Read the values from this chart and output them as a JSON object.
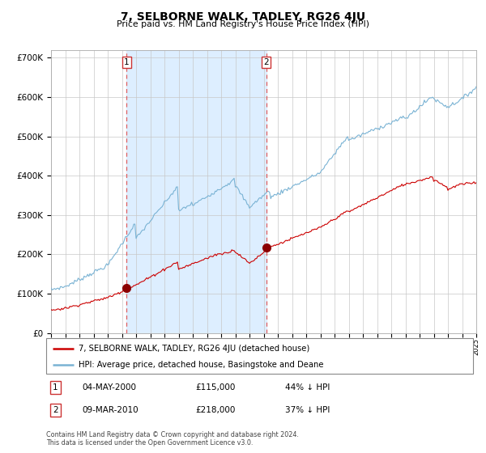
{
  "title": "7, SELBORNE WALK, TADLEY, RG26 4JU",
  "subtitle": "Price paid vs. HM Land Registry's House Price Index (HPI)",
  "legend_line1": "7, SELBORNE WALK, TADLEY, RG26 4JU (detached house)",
  "legend_line2": "HPI: Average price, detached house, Basingstoke and Deane",
  "annotation1_label": "1",
  "annotation1_date": "04-MAY-2000",
  "annotation1_price": "£115,000",
  "annotation1_hpi": "44% ↓ HPI",
  "annotation2_label": "2",
  "annotation2_date": "09-MAR-2010",
  "annotation2_price": "£218,000",
  "annotation2_hpi": "37% ↓ HPI",
  "footer1": "Contains HM Land Registry data © Crown copyright and database right 2024.",
  "footer2": "This data is licensed under the Open Government Licence v3.0.",
  "hpi_color": "#7ab3d4",
  "price_color": "#cc0000",
  "marker_color": "#8b0000",
  "vline_color": "#e06060",
  "shading_color": "#ddeeff",
  "ylim": [
    0,
    720000
  ],
  "start_year": 1995,
  "end_year": 2025,
  "sale1_year": 2000.34,
  "sale1_value": 115000,
  "sale2_year": 2010.18,
  "sale2_value": 218000
}
